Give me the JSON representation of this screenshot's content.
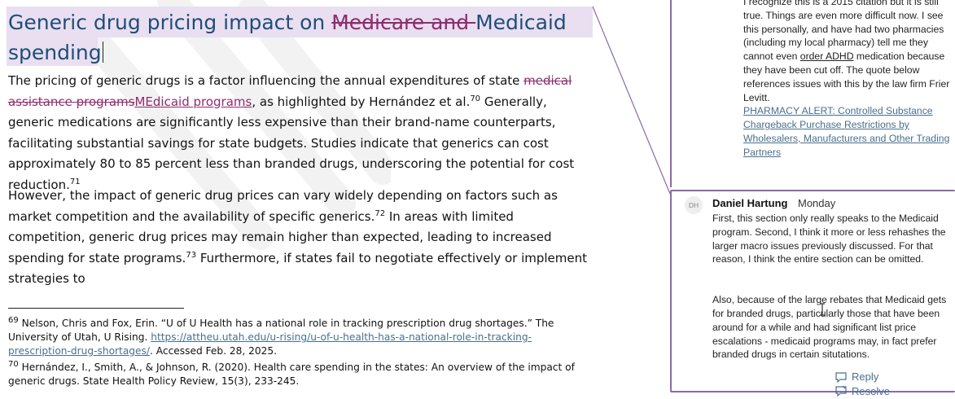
{
  "document": {
    "title": {
      "part1": "Generic drug pricing impact on ",
      "deleted": "Medicare and ",
      "part2": "Medicaid spending"
    },
    "paragraph1": {
      "a": "The pricing of generic drugs is a factor influencing the annual expenditures of state ",
      "deleted": "medical assistance programs",
      "inserted": "MEdicaid programs",
      "b": ", as highlighted by Hernández et al.",
      "ref1": "70",
      "c": " Generally, generic medications are significantly less expensive than their brand-name counterparts, facilitating substantial savings for state budgets. Studies indicate that generics can cost approximately 80 to 85 percent less than branded drugs, underscoring the potential for cost reduction.",
      "ref2": "71"
    },
    "paragraph2": {
      "a": "However, the impact of generic drug prices can vary widely depending on factors such as market competition and the availability of specific generics.",
      "ref1": "72",
      "b": " In areas with limited competition, generic drug prices may remain higher than expected, leading to increased spending for state programs.",
      "ref2": "73",
      "c": " Furthermore, if states fail to negotiate effectively or implement strategies to"
    },
    "footnotes": {
      "fn69": {
        "num": "69",
        "text": " Nelson, Chris and Fox, Erin. “U of U Health has a national role in tracking prescription drug shortages.” The University of Utah, U Rising. ",
        "link": "https://attheu.utah.edu/u-rising/u-of-u-health-has-a-national-role-in-tracking-prescription-drug-shortages/",
        "after": ". Accessed Feb. 28, 2025."
      },
      "fn70": {
        "num": "70",
        "text": " Hernández, I., Smith, A., & Johnson, R. (2020). Health care spending in the states: An overview of the impact of generic drugs. State Health Policy Review, 15(3), 233-245."
      }
    }
  },
  "comments": {
    "previous": {
      "text_a": "I recognize this is a 2015 citation but it is still true. Things are even more difficult now. I see this personally, and have had two pharmacies (including my local pharmacy) tell me they cannot even ",
      "underlined": "order  ADHD",
      "text_b": " medication because they have been cut off. The quote below references issues with this by the law firm Frier Levitt.",
      "alert_link": "PHARMACY ALERT: Controlled Substance Chargeback Purchase Restrictions by Wholesalers, Manufacturers and Other Trading Partners"
    },
    "current": {
      "initials": "DH",
      "author": "Daniel Hartung",
      "time": "Monday",
      "body1": "First, this section only really speaks to the Medicaid program.  Second, I think it more or less rehashes the larger macro issues previously discussed. For that reason, I think the entire section can be omitted.",
      "body2": "Also, because of the large rebates that Medicaid gets for branded drugs, particularly those that have been around for a while and had significant list price escalations - medicaid programs may, in fact prefer branded drugs in certain situtations.",
      "reply_label": "Reply",
      "resolve_label": "Resolve"
    }
  },
  "colors": {
    "heading": "#1f4e79",
    "revision": "#8e2c6e",
    "selection": "#e9dff1",
    "comment_border": "#8a6aa8",
    "link": "#4a6f8c"
  },
  "icons": [
    "reply-icon",
    "resolve-icon",
    "text-cursor-icon"
  ]
}
